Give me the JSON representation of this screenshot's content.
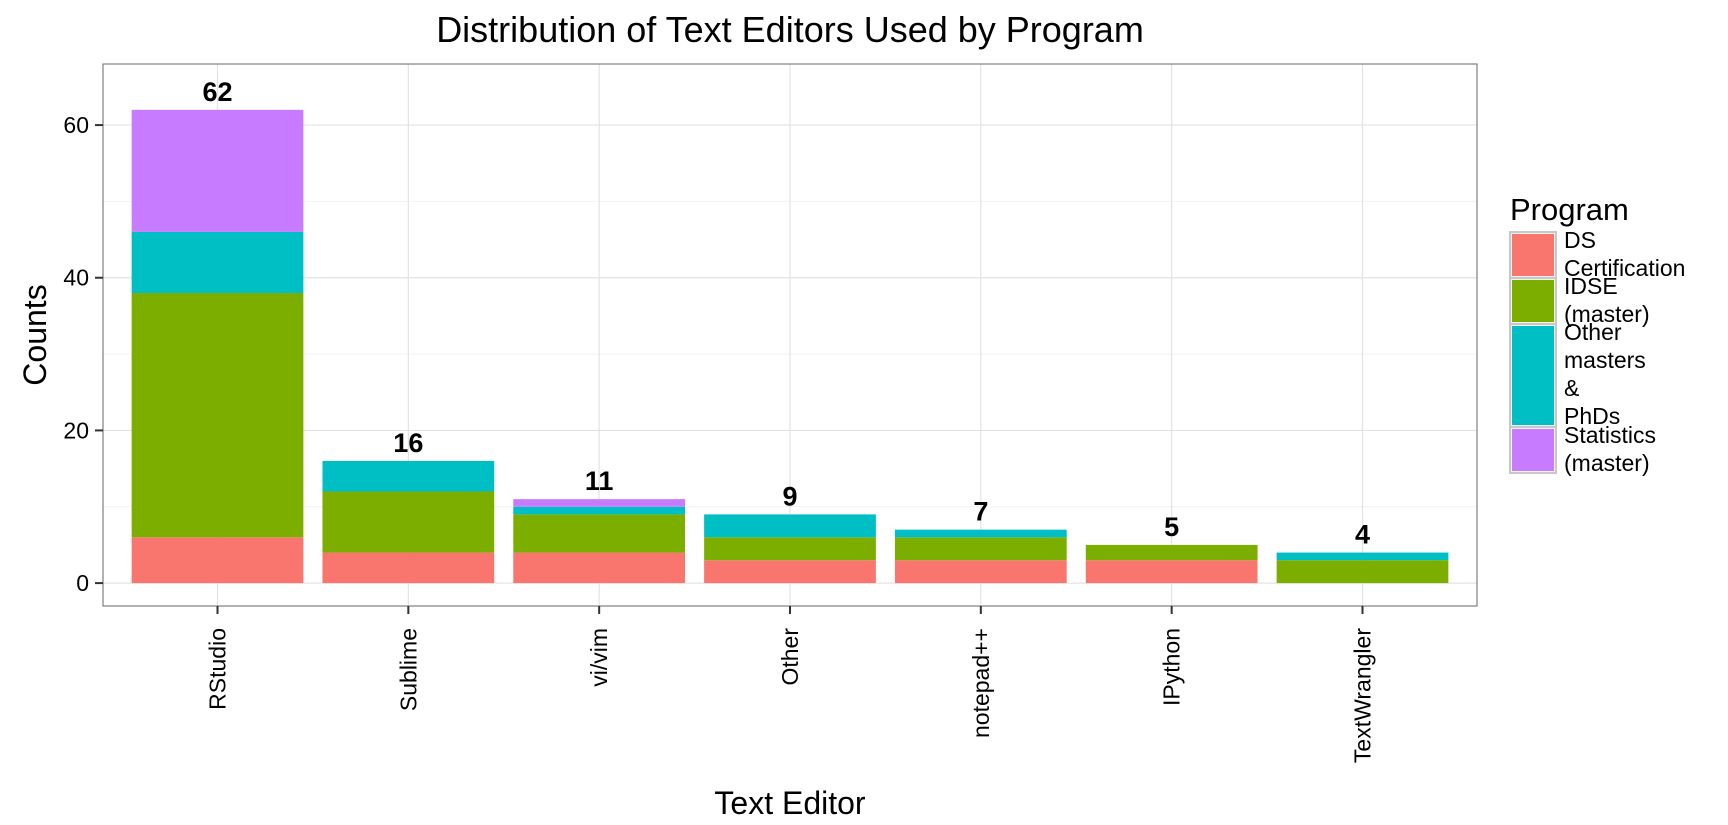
{
  "chart_data": {
    "type": "bar",
    "stacked": true,
    "title": "Distribution of Text Editors Used by Program",
    "xlabel": "Text Editor",
    "ylabel": "Counts",
    "categories": [
      "RStudio",
      "Sublime",
      "vi/vim",
      "Other",
      "notepad++",
      "IPython",
      "TextWrangler"
    ],
    "series": [
      {
        "name": "DS Certification",
        "values": [
          6,
          4,
          4,
          3,
          3,
          3,
          0
        ],
        "color": "#F8766D"
      },
      {
        "name": "IDSE (master)",
        "values": [
          32,
          8,
          5,
          3,
          3,
          2,
          3
        ],
        "color": "#7CAE00"
      },
      {
        "name": "Other masters & PhDs",
        "values": [
          8,
          4,
          1,
          3,
          1,
          0,
          1
        ],
        "color": "#00BFC4"
      },
      {
        "name": "Statistics (master)",
        "values": [
          16,
          0,
          1,
          0,
          0,
          0,
          0
        ],
        "color": "#C77CFF"
      }
    ],
    "totals": [
      "62",
      "16",
      "11",
      "9",
      "7",
      "5",
      "4"
    ],
    "ylim": [
      -3,
      68
    ],
    "yticks": [
      0,
      20,
      40,
      60
    ],
    "grid": true,
    "legend": {
      "title": "Program",
      "position": "right",
      "entries": [
        {
          "lines": [
            "DS",
            "Certification"
          ]
        },
        {
          "lines": [
            "IDSE",
            "(master)"
          ]
        },
        {
          "lines": [
            "Other",
            "masters",
            "&",
            "PhDs"
          ]
        },
        {
          "lines": [
            "Statistics",
            "(master)"
          ]
        }
      ]
    }
  }
}
